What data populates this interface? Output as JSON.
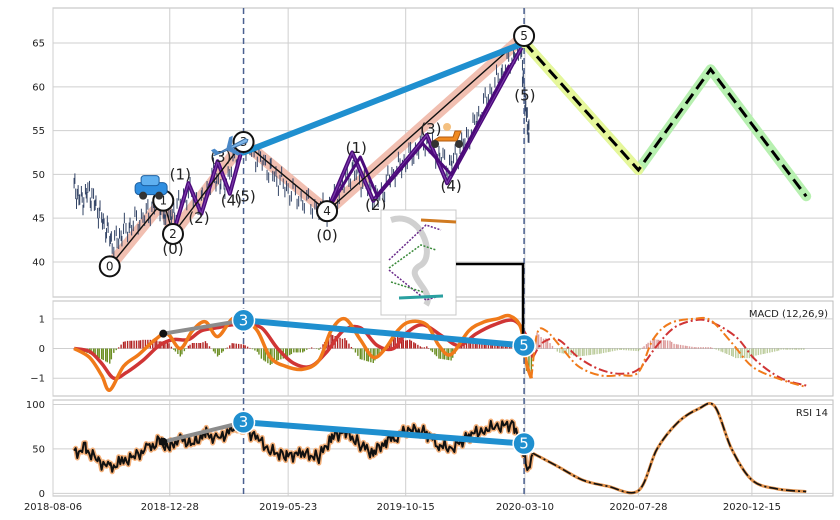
{
  "colors": {
    "grid": "#cfcfcf",
    "axis": "#bdbdbd",
    "price": "#334466",
    "impulse_fill": "#f0b8a8",
    "wave_purple": "#4b0a7a",
    "wave_black": "#111111",
    "trend_blue": "#1f8fcf",
    "proj_green": "#b7f0b0",
    "proj_yellow": "#e6f79a",
    "dash_black": "#000000",
    "vline": "#4a6090",
    "macd_line": "#f07a1a",
    "macd_signal": "#d03535",
    "hist_pos": "#b22222",
    "hist_neg": "#6b8e23",
    "rsi_line": "#111111",
    "rsi_glow": "#f3b07a",
    "rsi_proj": "#e0904a",
    "marker_blue": "#1f8fcf",
    "gray_conn": "#8c8c8c"
  },
  "icons": [
    "car-icon",
    "airplane-icon",
    "scooter-icon",
    "inset-chart-icon"
  ],
  "chart_data": [
    {
      "type": "line",
      "panel": "price",
      "x_ticks": [
        "2018-08-06",
        "2018-12-28",
        "2019-05-23",
        "2019-10-15",
        "2020-03-10",
        "2020-07-28",
        "2020-12-15"
      ],
      "y_ticks": [
        40,
        45,
        50,
        55,
        60,
        65
      ],
      "ylim": [
        36,
        69
      ],
      "xlim": [
        "2018-08-06",
        "2021-03-25"
      ],
      "grid": true,
      "vlines": [
        "2019-03-29",
        "2020-03-09"
      ],
      "waves": [
        {
          "date": "2018-10-15",
          "value": 39.5,
          "label": "0"
        },
        {
          "date": "2018-12-20",
          "value": 47.0,
          "label": "1"
        },
        {
          "date": "2019-01-01",
          "value": 43.2,
          "label": "2"
        },
        {
          "date": "2019-03-29",
          "value": 53.7,
          "label": "3"
        },
        {
          "date": "2019-07-10",
          "value": 45.8,
          "label": "4"
        },
        {
          "date": "2020-03-09",
          "value": 65.8,
          "label": "5"
        }
      ],
      "subwaves": [
        {
          "date": "2019-01-01",
          "value": 41.5,
          "label": "(0)"
        },
        {
          "date": "2019-01-10",
          "value": 50.0,
          "label": "(1)"
        },
        {
          "date": "2019-02-02",
          "value": 45.0,
          "label": "(2)"
        },
        {
          "date": "2019-03-01",
          "value": 52.0,
          "label": "(3)"
        },
        {
          "date": "2019-03-14",
          "value": 47.0,
          "label": "(4)"
        },
        {
          "date": "2019-03-31",
          "value": 47.5,
          "label": "(5)"
        },
        {
          "date": "2019-07-10",
          "value": 43.0,
          "label": "(0)"
        },
        {
          "date": "2019-08-15",
          "value": 53.0,
          "label": "(1)"
        },
        {
          "date": "2019-09-08",
          "value": 46.5,
          "label": "(2)"
        },
        {
          "date": "2019-11-15",
          "value": 55.2,
          "label": "(3)"
        },
        {
          "date": "2019-12-10",
          "value": 48.7,
          "label": "(4)"
        },
        {
          "date": "2020-03-10",
          "value": 59.0,
          "label": "(5)"
        }
      ],
      "trend_line": [
        {
          "date": "2019-03-29",
          "value": 52.5
        },
        {
          "date": "2020-03-09",
          "value": 65.0
        }
      ],
      "projection": [
        {
          "date": "2020-03-10",
          "value": 65.0
        },
        {
          "date": "2020-07-28",
          "value": 50.5
        },
        {
          "date": "2020-10-25",
          "value": 62.0
        },
        {
          "date": "2021-02-20",
          "value": 47.5
        }
      ],
      "price": [
        [
          "2018-09-01",
          48.5
        ],
        [
          "2018-09-10",
          47.0
        ],
        [
          "2018-09-20",
          48.0
        ],
        [
          "2018-09-30",
          46.0
        ],
        [
          "2018-10-10",
          44.0
        ],
        [
          "2018-10-20",
          42.0
        ],
        [
          "2018-11-01",
          43.5
        ],
        [
          "2018-11-15",
          44.5
        ],
        [
          "2018-12-01",
          45.5
        ],
        [
          "2018-12-15",
          47.0
        ],
        [
          "2018-12-25",
          44.0
        ],
        [
          "2019-01-05",
          46.0
        ],
        [
          "2019-01-20",
          48.0
        ],
        [
          "2019-02-05",
          46.5
        ],
        [
          "2019-02-20",
          50.0
        ],
        [
          "2019-03-05",
          48.5
        ],
        [
          "2019-03-20",
          52.0
        ],
        [
          "2019-04-01",
          53.5
        ],
        [
          "2019-04-15",
          52.0
        ],
        [
          "2019-05-01",
          50.5
        ],
        [
          "2019-05-15",
          49.0
        ],
        [
          "2019-06-01",
          47.5
        ],
        [
          "2019-06-20",
          46.5
        ],
        [
          "2019-07-10",
          45.8
        ],
        [
          "2019-07-25",
          48.0
        ],
        [
          "2019-08-10",
          50.5
        ],
        [
          "2019-08-25",
          49.0
        ],
        [
          "2019-09-10",
          47.0
        ],
        [
          "2019-09-25",
          49.5
        ],
        [
          "2019-10-10",
          51.0
        ],
        [
          "2019-10-25",
          52.5
        ],
        [
          "2019-11-10",
          54.0
        ],
        [
          "2019-11-25",
          52.0
        ],
        [
          "2019-12-10",
          51.0
        ],
        [
          "2019-12-25",
          53.5
        ],
        [
          "2020-01-10",
          56.0
        ],
        [
          "2020-01-25",
          59.0
        ],
        [
          "2020-02-10",
          61.5
        ],
        [
          "2020-02-25",
          63.5
        ],
        [
          "2020-03-05",
          65.0
        ],
        [
          "2020-03-09",
          60.0
        ],
        [
          "2020-03-12",
          57.0
        ],
        [
          "2020-03-16",
          54.0
        ]
      ]
    },
    {
      "type": "line",
      "panel": "macd",
      "title": "MACD (12,26,9)",
      "y_ticks": [
        1,
        0,
        -1
      ],
      "ylim": [
        -1.6,
        1.6
      ],
      "macd": [
        [
          "2018-09-01",
          0.0
        ],
        [
          "2018-09-20",
          -0.3
        ],
        [
          "2018-10-05",
          -0.9
        ],
        [
          "2018-10-15",
          -1.4
        ],
        [
          "2018-11-01",
          -0.6
        ],
        [
          "2018-11-20",
          -0.2
        ],
        [
          "2018-12-10",
          0.3
        ],
        [
          "2018-12-25",
          0.5
        ],
        [
          "2019-01-10",
          0.0
        ],
        [
          "2019-01-25",
          0.6
        ],
        [
          "2019-02-10",
          0.9
        ],
        [
          "2019-02-25",
          0.4
        ],
        [
          "2019-03-15",
          1.0
        ],
        [
          "2019-03-29",
          0.95
        ],
        [
          "2019-04-15",
          0.6
        ],
        [
          "2019-05-01",
          -0.3
        ],
        [
          "2019-05-20",
          -0.6
        ],
        [
          "2019-06-10",
          -0.7
        ],
        [
          "2019-06-30",
          -0.4
        ],
        [
          "2019-07-15",
          0.6
        ],
        [
          "2019-08-01",
          1.0
        ],
        [
          "2019-08-20",
          0.3
        ],
        [
          "2019-09-05",
          -0.3
        ],
        [
          "2019-09-20",
          0.0
        ],
        [
          "2019-10-05",
          0.6
        ],
        [
          "2019-10-20",
          0.9
        ],
        [
          "2019-11-10",
          0.8
        ],
        [
          "2019-11-25",
          0.1
        ],
        [
          "2019-12-10",
          -0.2
        ],
        [
          "2020-01-01",
          0.6
        ],
        [
          "2020-01-20",
          0.9
        ],
        [
          "2020-02-05",
          1.0
        ],
        [
          "2020-02-20",
          1.1
        ],
        [
          "2020-03-05",
          0.7
        ],
        [
          "2020-03-12",
          -0.5
        ],
        [
          "2020-03-18",
          -1.0
        ],
        [
          "2020-03-25",
          0.5
        ],
        [
          "2020-04-05",
          0.6
        ],
        [
          "2020-04-25",
          0.0
        ],
        [
          "2020-05-15",
          -0.6
        ],
        [
          "2020-06-10",
          -0.9
        ],
        [
          "2020-07-05",
          -0.9
        ],
        [
          "2020-07-28",
          -0.8
        ],
        [
          "2020-08-15",
          0.3
        ],
        [
          "2020-09-05",
          0.85
        ],
        [
          "2020-10-05",
          1.0
        ],
        [
          "2020-10-25",
          0.95
        ],
        [
          "2020-11-20",
          0.2
        ],
        [
          "2020-12-15",
          -0.6
        ],
        [
          "2021-01-15",
          -1.0
        ],
        [
          "2021-02-20",
          -1.3
        ]
      ],
      "signal": [
        [
          "2018-09-01",
          0.0
        ],
        [
          "2018-09-20",
          -0.1
        ],
        [
          "2018-10-05",
          -0.5
        ],
        [
          "2018-10-20",
          -1.0
        ],
        [
          "2018-11-05",
          -0.8
        ],
        [
          "2018-11-25",
          -0.4
        ],
        [
          "2018-12-15",
          0.1
        ],
        [
          "2019-01-01",
          0.3
        ],
        [
          "2019-01-20",
          0.3
        ],
        [
          "2019-02-05",
          0.6
        ],
        [
          "2019-02-25",
          0.7
        ],
        [
          "2019-03-15",
          0.8
        ],
        [
          "2019-03-29",
          0.8
        ],
        [
          "2019-04-20",
          0.7
        ],
        [
          "2019-05-10",
          0.0
        ],
        [
          "2019-05-30",
          -0.5
        ],
        [
          "2019-06-20",
          -0.6
        ],
        [
          "2019-07-10",
          -0.1
        ],
        [
          "2019-07-30",
          0.6
        ],
        [
          "2019-08-20",
          0.7
        ],
        [
          "2019-09-10",
          0.1
        ],
        [
          "2019-09-30",
          0.0
        ],
        [
          "2019-10-15",
          0.5
        ],
        [
          "2019-11-05",
          0.8
        ],
        [
          "2019-11-30",
          0.4
        ],
        [
          "2019-12-20",
          0.1
        ],
        [
          "2020-01-10",
          0.5
        ],
        [
          "2020-02-01",
          0.8
        ],
        [
          "2020-02-25",
          0.95
        ],
        [
          "2020-03-10",
          0.5
        ],
        [
          "2020-03-20",
          -0.3
        ],
        [
          "2020-04-01",
          0.2
        ],
        [
          "2020-04-20",
          0.3
        ],
        [
          "2020-05-15",
          -0.3
        ],
        [
          "2020-06-10",
          -0.7
        ],
        [
          "2020-07-05",
          -0.85
        ],
        [
          "2020-07-28",
          -0.7
        ],
        [
          "2020-08-20",
          0.1
        ],
        [
          "2020-09-10",
          0.7
        ],
        [
          "2020-10-05",
          0.95
        ],
        [
          "2020-10-25",
          0.9
        ],
        [
          "2020-11-25",
          0.4
        ],
        [
          "2020-12-20",
          -0.4
        ],
        [
          "2021-01-20",
          -1.0
        ],
        [
          "2021-02-20",
          -1.25
        ]
      ],
      "divergence": [
        {
          "date": "2018-12-20",
          "value": 0.5
        },
        {
          "date": "2019-03-29",
          "value": 0.95,
          "label": "3"
        },
        {
          "date": "2020-03-09",
          "value": 0.1,
          "label": "5"
        }
      ]
    },
    {
      "type": "line",
      "panel": "rsi",
      "title": "RSI 14",
      "y_ticks": [
        100,
        50,
        0
      ],
      "ylim": [
        -3,
        105
      ],
      "rsi": [
        [
          "2018-09-01",
          45
        ],
        [
          "2018-09-15",
          50
        ],
        [
          "2018-09-30",
          38
        ],
        [
          "2018-10-15",
          28
        ],
        [
          "2018-10-30",
          35
        ],
        [
          "2018-11-15",
          42
        ],
        [
          "2018-12-01",
          50
        ],
        [
          "2018-12-15",
          58
        ],
        [
          "2018-12-28",
          52
        ],
        [
          "2019-01-10",
          62
        ],
        [
          "2019-01-25",
          55
        ],
        [
          "2019-02-10",
          68
        ],
        [
          "2019-02-25",
          60
        ],
        [
          "2019-03-15",
          72
        ],
        [
          "2019-03-29",
          74
        ],
        [
          "2019-04-15",
          62
        ],
        [
          "2019-05-01",
          48
        ],
        [
          "2019-05-20",
          42
        ],
        [
          "2019-06-10",
          45
        ],
        [
          "2019-06-30",
          40
        ],
        [
          "2019-07-15",
          62
        ],
        [
          "2019-08-01",
          70
        ],
        [
          "2019-08-20",
          55
        ],
        [
          "2019-09-05",
          45
        ],
        [
          "2019-09-20",
          58
        ],
        [
          "2019-10-05",
          65
        ],
        [
          "2019-10-20",
          72
        ],
        [
          "2019-11-10",
          68
        ],
        [
          "2019-11-25",
          55
        ],
        [
          "2019-12-10",
          50
        ],
        [
          "2020-01-01",
          65
        ],
        [
          "2020-01-20",
          72
        ],
        [
          "2020-02-05",
          75
        ],
        [
          "2020-02-25",
          78
        ],
        [
          "2020-03-05",
          60
        ],
        [
          "2020-03-10",
          40
        ],
        [
          "2020-03-15",
          28
        ],
        [
          "2020-03-20",
          45
        ]
      ],
      "projection": [
        [
          "2020-03-20",
          45
        ],
        [
          "2020-04-20",
          30
        ],
        [
          "2020-05-20",
          15
        ],
        [
          "2020-06-20",
          8
        ],
        [
          "2020-07-28",
          3
        ],
        [
          "2020-08-20",
          50
        ],
        [
          "2020-09-15",
          80
        ],
        [
          "2020-10-10",
          95
        ],
        [
          "2020-10-30",
          98
        ],
        [
          "2020-11-20",
          50
        ],
        [
          "2020-12-15",
          15
        ],
        [
          "2021-01-15",
          5
        ],
        [
          "2021-02-20",
          2
        ]
      ],
      "divergence": [
        {
          "date": "2018-12-20",
          "value": 58
        },
        {
          "date": "2019-03-29",
          "value": 80,
          "label": "3"
        },
        {
          "date": "2020-03-09",
          "value": 56,
          "label": "5"
        }
      ]
    }
  ]
}
